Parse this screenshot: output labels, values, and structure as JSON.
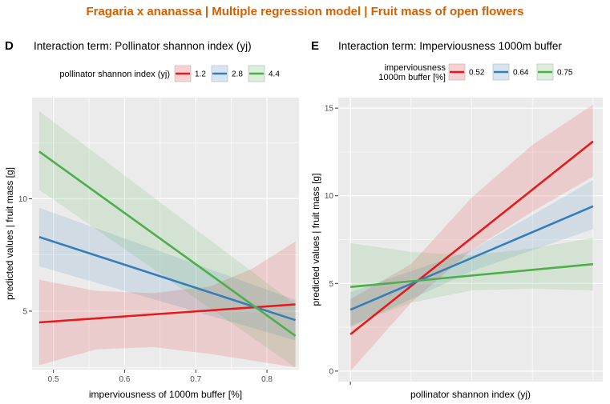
{
  "figure_title": "Fragaria x ananassa | Multiple regression model | Fruit mass of open flowers",
  "title_color": "#d55e00",
  "chart_data": [
    {
      "type": "line",
      "panel_label": "D",
      "title": "Interaction term: Pollinator shannon index (yj)",
      "xlabel": "imperviousness of 1000m buffer [%]",
      "ylabel": "predicted values | fruit mass [g]",
      "xlim": [
        0.47,
        0.845
      ],
      "ylim": [
        2.4,
        14.5
      ],
      "xticks": [
        0.5,
        0.6,
        0.7,
        0.8
      ],
      "xtick_labels": [
        "0.5",
        "0.6",
        "0.7",
        "0.8"
      ],
      "yticks": [
        5,
        10
      ],
      "ytick_labels": [
        "5",
        "10"
      ],
      "grid": true,
      "legend_title": "pollinator shannon index (yj)",
      "legend_position": "top",
      "series": [
        {
          "name": "1.2",
          "color": "#e41a1c",
          "x": [
            0.48,
            0.84
          ],
          "y": [
            4.5,
            5.3
          ],
          "band_x": [
            0.48,
            0.56,
            0.64,
            0.72,
            0.78,
            0.84
          ],
          "band_lower": [
            2.6,
            3.3,
            3.4,
            3.1,
            2.8,
            2.5
          ],
          "band_upper": [
            6.4,
            5.9,
            5.8,
            6.1,
            6.9,
            8.1
          ]
        },
        {
          "name": "2.8",
          "color": "#377eb8",
          "x": [
            0.48,
            0.84
          ],
          "y": [
            8.3,
            4.6
          ],
          "band_x": [
            0.48,
            0.84
          ],
          "band_lower": [
            7.0,
            3.7
          ],
          "band_upper": [
            9.6,
            5.5
          ]
        },
        {
          "name": "4.4",
          "color": "#4daf4a",
          "x": [
            0.48,
            0.84
          ],
          "y": [
            12.1,
            3.9
          ],
          "band_x": [
            0.48,
            0.84
          ],
          "band_lower": [
            10.4,
            2.5
          ],
          "band_upper": [
            13.9,
            5.3
          ]
        }
      ]
    },
    {
      "type": "line",
      "panel_label": "E",
      "title": "Interaction term: Imperviousness 1000m buffer",
      "xlabel": "pollinator shannon index (yj)",
      "ylabel": "predicted values | fruit mass [g]",
      "xlim": [
        -0.05,
        1.04
      ],
      "ylim": [
        -0.6,
        15.6
      ],
      "xticks": [
        0
      ],
      "xtick_labels": [
        ""
      ],
      "yticks": [
        0,
        5,
        10,
        15
      ],
      "ytick_labels": [
        "0",
        "5",
        "10",
        "15"
      ],
      "grid": true,
      "legend_title": "imperviousness\n1000m buffer [%]",
      "legend_position": "top",
      "series": [
        {
          "name": "0.52",
          "color": "#e41a1c",
          "x": [
            0,
            1
          ],
          "y": [
            2.1,
            13.1
          ],
          "band_x": [
            0,
            0.25,
            0.5,
            0.75,
            1
          ],
          "band_lower": [
            0.0,
            3.9,
            6.9,
            9.1,
            11.1
          ],
          "band_upper": [
            4.1,
            6.1,
            9.9,
            12.9,
            15.2
          ]
        },
        {
          "name": "0.64",
          "color": "#377eb8",
          "x": [
            0,
            1
          ],
          "y": [
            3.5,
            9.4
          ],
          "band_x": [
            0,
            0.5,
            1
          ],
          "band_lower": [
            2.5,
            5.7,
            8.1
          ],
          "band_upper": [
            4.5,
            6.9,
            10.9
          ]
        },
        {
          "name": "0.75",
          "color": "#4daf4a",
          "x": [
            0,
            1
          ],
          "y": [
            4.8,
            6.1
          ],
          "band_x": [
            0,
            0.25,
            0.5,
            0.75,
            1
          ],
          "band_lower": [
            2.6,
            3.9,
            4.6,
            4.7,
            4.6
          ],
          "band_upper": [
            7.3,
            6.8,
            6.6,
            7.0,
            7.6
          ]
        }
      ]
    }
  ]
}
